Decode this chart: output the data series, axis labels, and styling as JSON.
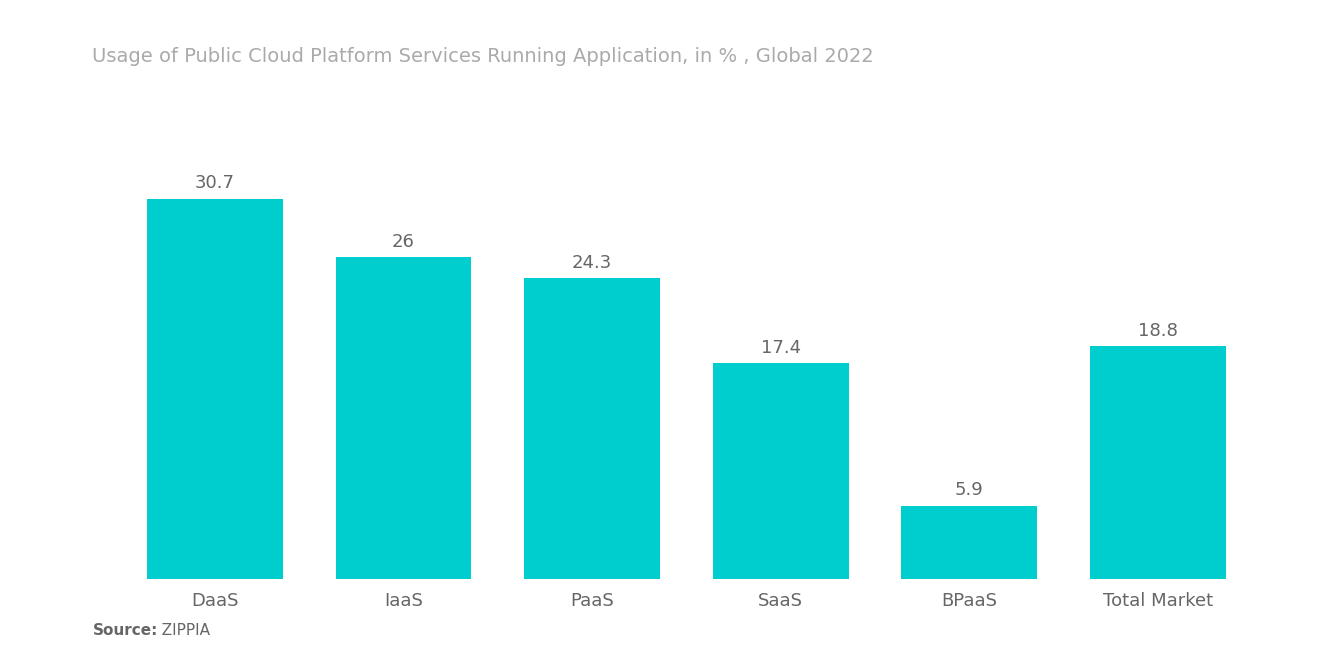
{
  "title": "Usage of Public Cloud Platform Services Running Application, in % , Global 2022",
  "categories": [
    "DaaS",
    "IaaS",
    "PaaS",
    "SaaS",
    "BPaaS",
    "Total Market"
  ],
  "values": [
    30.7,
    26,
    24.3,
    17.4,
    5.9,
    18.8
  ],
  "bar_color": "#00CDCD",
  "label_color": "#666666",
  "title_color": "#aaaaaa",
  "source_label": "Source:",
  "source_value": "  ZIPPIA",
  "background_color": "#ffffff",
  "ylim": [
    0,
    36
  ],
  "bar_width": 0.72,
  "title_fontsize": 14,
  "label_fontsize": 13,
  "tick_fontsize": 13,
  "source_fontsize": 11
}
